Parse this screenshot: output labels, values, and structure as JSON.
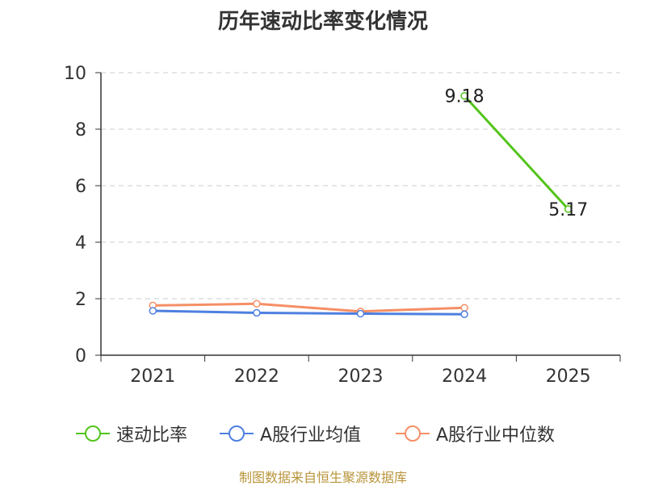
{
  "chart_data": {
    "type": "line",
    "title": "历年速动比率变化情况",
    "categories": [
      "2021",
      "2022",
      "2023",
      "2024",
      "2025"
    ],
    "ylim": [
      0,
      10
    ],
    "yticks": [
      "0",
      "2",
      "4",
      "6",
      "8",
      "10"
    ],
    "grid": true,
    "legend_position": "bottom",
    "series": [
      {
        "name": "速动比率",
        "color": "#52c41a",
        "values": [
          null,
          null,
          null,
          9.18,
          5.17
        ],
        "labels": [
          "",
          "",
          "",
          "9.18",
          "5.17"
        ]
      },
      {
        "name": "A股行业均值",
        "color": "#4e7fe0",
        "values": [
          1.57,
          1.5,
          1.47,
          1.45,
          null
        ],
        "labels": []
      },
      {
        "name": "A股行业中位数",
        "color": "#f58f66",
        "values": [
          1.76,
          1.82,
          1.55,
          1.68,
          null
        ],
        "labels": []
      }
    ]
  },
  "footer": {
    "source": "制图数据来自恒生聚源数据库"
  }
}
